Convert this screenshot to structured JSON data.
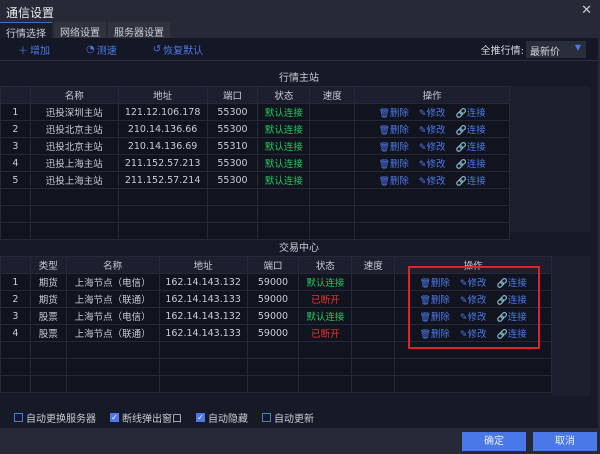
{
  "window": {
    "title": "通信设置",
    "close_icon": "✕"
  },
  "tabs": [
    {
      "label": "行情选择"
    },
    {
      "label": "网络设置"
    },
    {
      "label": "服务器设置"
    }
  ],
  "toolbar": {
    "add": "增加",
    "speed": "测速",
    "restore": "恢复默认",
    "push_label": "全推行情:",
    "push_value": "最新价"
  },
  "quote": {
    "title": "行情主站",
    "headers": [
      "",
      "名称",
      "地址",
      "端口",
      "状态",
      "速度",
      "操作"
    ],
    "rows": [
      {
        "idx": "1",
        "name": "迅投深圳主站",
        "addr": "121.12.106.178",
        "port": "55300",
        "status": "默认连接",
        "speed": ""
      },
      {
        "idx": "2",
        "name": "迅投北京主站",
        "addr": "210.14.136.66",
        "port": "55300",
        "status": "默认连接",
        "speed": ""
      },
      {
        "idx": "3",
        "name": "迅投北京主站",
        "addr": "210.14.136.69",
        "port": "55310",
        "status": "默认连接",
        "speed": ""
      },
      {
        "idx": "4",
        "name": "迅投上海主站",
        "addr": "211.152.57.213",
        "port": "55300",
        "status": "默认连接",
        "speed": ""
      },
      {
        "idx": "5",
        "name": "迅投上海主站",
        "addr": "211.152.57.214",
        "port": "55300",
        "status": "默认连接",
        "speed": ""
      }
    ]
  },
  "trade": {
    "title": "交易中心",
    "headers": [
      "",
      "类型",
      "名称",
      "地址",
      "端口",
      "状态",
      "速度",
      "操作"
    ],
    "rows": [
      {
        "idx": "1",
        "type": "期货",
        "name": "上海节点（电信）",
        "addr": "162.14.143.132",
        "port": "59000",
        "status": "默认连接",
        "state": "ok"
      },
      {
        "idx": "2",
        "type": "期货",
        "name": "上海节点（联通）",
        "addr": "162.14.143.133",
        "port": "59000",
        "status": "已断开",
        "state": "off"
      },
      {
        "idx": "3",
        "type": "股票",
        "name": "上海节点（电信）",
        "addr": "162.14.143.132",
        "port": "59000",
        "status": "默认连接",
        "state": "ok"
      },
      {
        "idx": "4",
        "type": "股票",
        "name": "上海节点（联通）",
        "addr": "162.14.143.133",
        "port": "59000",
        "status": "已断开",
        "state": "off"
      }
    ]
  },
  "ops": {
    "delete": "删除",
    "edit": "修改",
    "connect": "连接"
  },
  "checks": [
    {
      "label": "自动更换服务器",
      "checked": false
    },
    {
      "label": "断线弹出窗口",
      "checked": true
    },
    {
      "label": "自动隐藏",
      "checked": true
    },
    {
      "label": "自动更新",
      "checked": false
    }
  ],
  "footer": {
    "ok": "确定",
    "cancel": "取消"
  },
  "colors": {
    "accent": "#4a78e8",
    "connected": "#1fc95f",
    "disconnected": "#f0312f",
    "highlight": "#e0202a"
  }
}
